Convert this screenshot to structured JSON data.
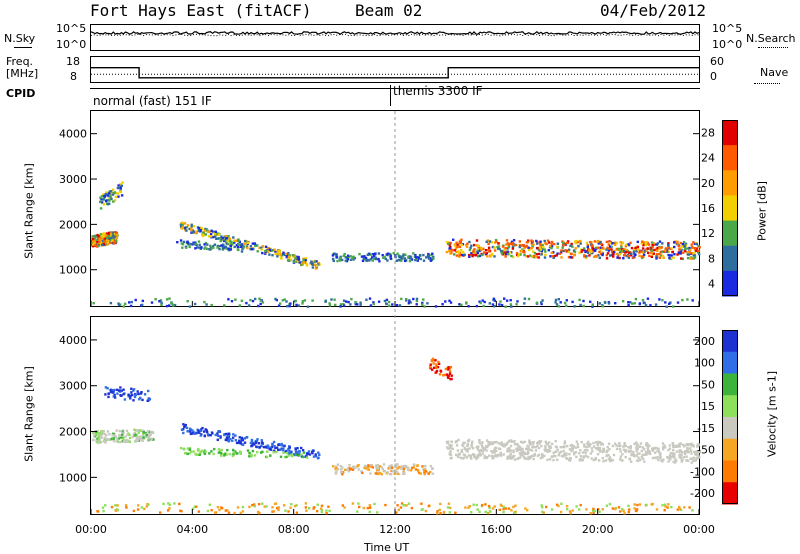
{
  "header": {
    "title": "Fort Hays East (fitACF)",
    "beam": "Beam 02",
    "date": "04/Feb/2012"
  },
  "top_panels": {
    "nsky_label": "N.Sky",
    "nsky_ticks": [
      "10^5",
      "10^0"
    ],
    "nsearch_label": "N.Search",
    "nsearch_ticks": [
      "10^5",
      "10^0"
    ],
    "freq_label": "Freq.",
    "freq_unit": "[MHz]",
    "freq_ticks": [
      "18",
      "8"
    ],
    "nave_label": "Nave",
    "nave_ticks": [
      "60",
      "0"
    ],
    "cpid_label": "CPID",
    "cpid_segments": [
      {
        "name": "normal (fast) 151 IF",
        "start_hour": 0
      },
      {
        "name": "themis 3300 IF",
        "start_hour": 12
      }
    ]
  },
  "chart_data": [
    {
      "type": "line",
      "panel": "noise",
      "series": [
        {
          "name": "N.Sky",
          "style": "solid"
        },
        {
          "name": "N.Search",
          "style": "dotted"
        }
      ]
    },
    {
      "type": "line",
      "panel": "frequency-nave",
      "series": [
        {
          "name": "Freq.",
          "style": "solid",
          "x": [
            0,
            1.9,
            1.9,
            14.1,
            14.1,
            24
          ],
          "y": [
            13.5,
            13.5,
            9.6,
            9.6,
            13.5,
            13.5
          ]
        },
        {
          "name": "Nave",
          "style": "dotted",
          "x": [
            0,
            24
          ],
          "y": [
            18,
            18
          ]
        }
      ],
      "ylim_left": [
        8,
        18
      ],
      "ylim_right": [
        0,
        60
      ]
    },
    {
      "type": "heatmap",
      "panel": "power",
      "ylabel": "Slant Range [km]",
      "yticks": [
        1000,
        2000,
        3000,
        4000
      ],
      "ylim": [
        200,
        4500
      ],
      "xlim": [
        0,
        24
      ],
      "colorbar_label": "Power [dB]",
      "colorbar_ticks": [
        "28",
        "24",
        "20",
        "16",
        "12",
        "8",
        "4"
      ],
      "colorbar_colors": [
        "#e00000",
        "#ff5a00",
        "#ff9c00",
        "#f2d000",
        "#4aa84a",
        "#2e6e9e",
        "#1a2ae0"
      ],
      "features": [
        {
          "start_hour": 0.0,
          "end_hour": 1.0,
          "range_km": 1700,
          "level": "high"
        },
        {
          "start_hour": 3.5,
          "end_hour": 9.0,
          "range_km": 1600,
          "level": "medium"
        },
        {
          "start_hour": 9.5,
          "end_hour": 13.5,
          "range_km": 1300,
          "level": "low"
        },
        {
          "start_hour": 14.0,
          "end_hour": 24.0,
          "range_km": 1450,
          "level": "high"
        }
      ]
    },
    {
      "type": "heatmap",
      "panel": "velocity",
      "ylabel": "Slant Range [km]",
      "yticks": [
        1000,
        2000,
        3000,
        4000
      ],
      "ylim": [
        200,
        4500
      ],
      "xlim": [
        0,
        24
      ],
      "xticks": [
        "00:00",
        "04:00",
        "08:00",
        "12:00",
        "16:00",
        "20:00",
        "00:00"
      ],
      "xlabel": "Time UT",
      "colorbar_label": "Velocity [m s-1]",
      "colorbar_ticks": [
        "200",
        "100",
        "50",
        "15",
        "-15",
        "-50",
        "-100",
        "-200"
      ],
      "colorbar_colors": [
        "#1e32d2",
        "#2f6ee6",
        "#3cb43c",
        "#8ee05a",
        "#c9c9c0",
        "#f5a623",
        "#ff7a00",
        "#e80000"
      ],
      "features": [
        {
          "start_hour": 0.0,
          "end_hour": 2.5,
          "range_km": 1900,
          "velocity": "low"
        },
        {
          "start_hour": 3.5,
          "end_hour": 9.0,
          "range_km": 1800,
          "velocity": "positive"
        },
        {
          "start_hour": 9.5,
          "end_hour": 13.5,
          "range_km": 1200,
          "velocity": "low"
        },
        {
          "start_hour": 14.0,
          "end_hour": 24.0,
          "range_km": 1600,
          "velocity": "low"
        }
      ]
    }
  ]
}
